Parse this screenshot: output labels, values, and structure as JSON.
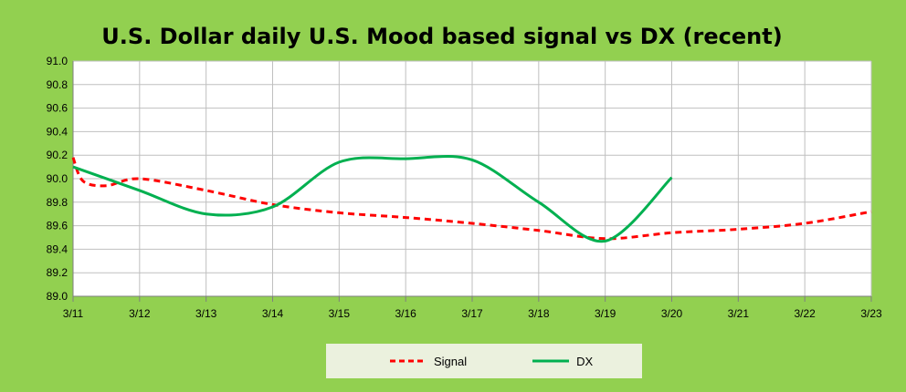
{
  "colors": {
    "background": "#92d050",
    "plot_background": "#ffffff",
    "gridline": "#bfbfbf",
    "signal": "#ff0000",
    "dx": "#00b050"
  },
  "chart_data": {
    "type": "line",
    "title": "U.S. Dollar daily U.S. Mood based signal vs DX (recent)",
    "xlabel": "",
    "ylabel": "",
    "categories": [
      "3/11",
      "3/12",
      "3/13",
      "3/14",
      "3/15",
      "3/16",
      "3/17",
      "3/18",
      "3/19",
      "3/20",
      "3/21",
      "3/22",
      "3/23"
    ],
    "ylim": [
      89.0,
      91.0
    ],
    "yticks": [
      "89.0",
      "89.2",
      "89.4",
      "89.6",
      "89.8",
      "90.0",
      "90.2",
      "90.4",
      "90.6",
      "90.8",
      "91.0"
    ],
    "grid": true,
    "legend_position": "bottom",
    "series": [
      {
        "name": "Signal",
        "style": "dashed",
        "color": "#ff0000",
        "x": [
          0,
          0.15,
          0.5,
          1.0,
          2.0,
          3.0,
          4.0,
          5.0,
          6.0,
          7.0,
          8.0,
          9.0,
          10.0,
          11.0,
          12.0
        ],
        "y": [
          90.18,
          89.98,
          89.94,
          90.0,
          89.9,
          89.78,
          89.71,
          89.67,
          89.62,
          89.56,
          89.49,
          89.54,
          89.57,
          89.62,
          89.72
        ]
      },
      {
        "name": "DX",
        "style": "solid",
        "color": "#00b050",
        "x": [
          0,
          1.0,
          2.0,
          3.0,
          4.0,
          5.0,
          6.0,
          7.0,
          8.0,
          9.0
        ],
        "y": [
          90.1,
          89.9,
          89.7,
          89.76,
          90.14,
          90.17,
          90.16,
          89.8,
          89.47,
          90.01
        ]
      }
    ]
  }
}
